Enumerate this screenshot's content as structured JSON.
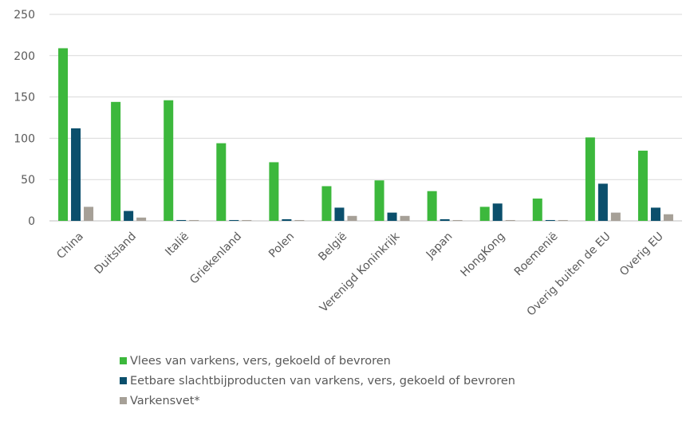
{
  "chart_data": {
    "type": "bar",
    "categories": [
      "China",
      "Duitsland",
      "Italië",
      "Griekenland",
      "Polen",
      "België",
      "Verenigd Koninkrijk",
      "Japan",
      "HongKong",
      "Roemenië",
      "Overig buiten de EU",
      "Overig EU"
    ],
    "series": [
      {
        "name": "Vlees van varkens, vers, gekoeld of bevroren",
        "color": "#3cb83c",
        "values": [
          209,
          144,
          146,
          94,
          71,
          42,
          49,
          36,
          17,
          27,
          101,
          85
        ]
      },
      {
        "name": "Eetbare slachtbijproducten van varkens, vers, gekoeld of bevroren",
        "color": "#0b4f6c",
        "values": [
          112,
          12,
          1,
          1,
          2,
          16,
          10,
          2,
          21,
          1,
          45,
          16
        ]
      },
      {
        "name": "Varkensvet*",
        "color": "#a6a097",
        "values": [
          17,
          4,
          1,
          1,
          1,
          6,
          6,
          1,
          1,
          1,
          10,
          8
        ]
      }
    ],
    "yticks": [
      0,
      50,
      100,
      150,
      200,
      250
    ],
    "ylim": [
      0,
      250
    ],
    "grid": true,
    "legend_position": "bottom"
  }
}
